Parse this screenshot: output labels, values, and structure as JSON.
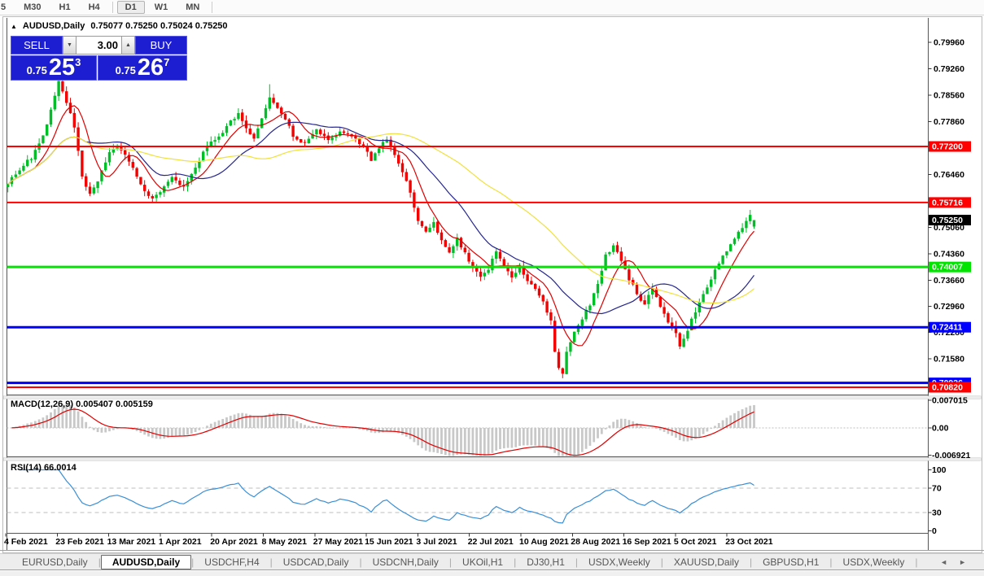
{
  "toolbar": {
    "timeframes": [
      "5",
      "M30",
      "H1",
      "H4",
      "D1",
      "W1",
      "MN"
    ],
    "active": "D1"
  },
  "chart": {
    "collapse_icon": "▲",
    "title": "AUDUSD,Daily",
    "ohlc": "0.75077 0.75250 0.75024 0.75250"
  },
  "trade": {
    "sell_label": "SELL",
    "buy_label": "BUY",
    "volume": "3.00",
    "spin_down_icon": "▼",
    "spin_up_icon": "▲",
    "sell": {
      "prefix": "0.75",
      "big": "25",
      "sup": "3"
    },
    "buy": {
      "prefix": "0.75",
      "big": "26",
      "sup": "7"
    }
  },
  "indicators": {
    "macd": {
      "title": "MACD(12,26,9) 0.005407 0.005159"
    },
    "rsi": {
      "title": "RSI(14) 66.0014"
    }
  },
  "tabs": {
    "items": [
      "EURUSD,Daily",
      "AUDUSD,Daily",
      "USDCHF,H4",
      "USDCAD,Daily",
      "USDCNH,Daily",
      "UKOil,H1",
      "DJ30,H1",
      "USDX,Weekly",
      "XAUUSD,Daily",
      "GBPUSD,H1",
      "USDX,Weekly"
    ],
    "active_index": 1,
    "scroll_left_icon": "◄",
    "scroll_right_icon": "►"
  },
  "chart_data": {
    "type": "candlestick",
    "symbol": "AUDUSD",
    "timeframe": "Daily",
    "last_bar": {
      "open": 0.75077,
      "high": 0.7525,
      "low": 0.75024,
      "close": 0.7525
    },
    "n_bars": 192,
    "candle_up_color": "#00BE28",
    "candle_down_color": "#F30000",
    "close_path_anchors": [
      [
        0,
        0.7625
      ],
      [
        3,
        0.766
      ],
      [
        6,
        0.769
      ],
      [
        9,
        0.7745
      ],
      [
        12,
        0.785
      ],
      [
        13,
        0.7895
      ],
      [
        15,
        0.784
      ],
      [
        17,
        0.777
      ],
      [
        19,
        0.764
      ],
      [
        21,
        0.759
      ],
      [
        23,
        0.763
      ],
      [
        26,
        0.77
      ],
      [
        28,
        0.772
      ],
      [
        31,
        0.768
      ],
      [
        34,
        0.762
      ],
      [
        37,
        0.758
      ],
      [
        39,
        0.76
      ],
      [
        42,
        0.7635
      ],
      [
        45,
        0.761
      ],
      [
        48,
        0.7665
      ],
      [
        51,
        0.772
      ],
      [
        54,
        0.7745
      ],
      [
        57,
        0.7785
      ],
      [
        59,
        0.7805
      ],
      [
        61,
        0.777
      ],
      [
        63,
        0.7745
      ],
      [
        65,
        0.7795
      ],
      [
        67,
        0.785
      ],
      [
        69,
        0.782
      ],
      [
        71,
        0.779
      ],
      [
        73,
        0.775
      ],
      [
        76,
        0.7725
      ],
      [
        79,
        0.7765
      ],
      [
        82,
        0.7735
      ],
      [
        85,
        0.7758
      ],
      [
        88,
        0.7745
      ],
      [
        91,
        0.772
      ],
      [
        93,
        0.7685
      ],
      [
        95,
        0.7715
      ],
      [
        97,
        0.774
      ],
      [
        99,
        0.7695
      ],
      [
        101,
        0.765
      ],
      [
        103,
        0.76
      ],
      [
        105,
        0.7525
      ],
      [
        107,
        0.749
      ],
      [
        109,
        0.7515
      ],
      [
        111,
        0.747
      ],
      [
        113,
        0.744
      ],
      [
        115,
        0.7475
      ],
      [
        117,
        0.744
      ],
      [
        119,
        0.74
      ],
      [
        121,
        0.737
      ],
      [
        123,
        0.7395
      ],
      [
        125,
        0.7445
      ],
      [
        127,
        0.7405
      ],
      [
        129,
        0.737
      ],
      [
        131,
        0.74
      ],
      [
        133,
        0.7365
      ],
      [
        135,
        0.734
      ],
      [
        137,
        0.7305
      ],
      [
        139,
        0.726
      ],
      [
        140,
        0.718
      ],
      [
        141,
        0.713
      ],
      [
        142,
        0.7115
      ],
      [
        143,
        0.7175
      ],
      [
        145,
        0.7225
      ],
      [
        147,
        0.7265
      ],
      [
        149,
        0.73
      ],
      [
        151,
        0.736
      ],
      [
        153,
        0.743
      ],
      [
        155,
        0.7455
      ],
      [
        157,
        0.742
      ],
      [
        159,
        0.737
      ],
      [
        161,
        0.733
      ],
      [
        163,
        0.73
      ],
      [
        165,
        0.7345
      ],
      [
        167,
        0.73
      ],
      [
        169,
        0.7255
      ],
      [
        171,
        0.723
      ],
      [
        172,
        0.7195
      ],
      [
        174,
        0.7235
      ],
      [
        176,
        0.7285
      ],
      [
        178,
        0.733
      ],
      [
        180,
        0.737
      ],
      [
        182,
        0.741
      ],
      [
        184,
        0.7445
      ],
      [
        186,
        0.748
      ],
      [
        188,
        0.7505
      ],
      [
        190,
        0.7535
      ],
      [
        191,
        0.7525
      ]
    ],
    "forced_points": [
      [
        13,
        "high",
        0.79
      ],
      [
        67,
        "high",
        0.7885
      ],
      [
        142,
        "low",
        0.7106
      ],
      [
        190,
        "high",
        0.7552
      ]
    ],
    "moving_averages": [
      {
        "period": 8,
        "color": "#E00000"
      },
      {
        "period": 21,
        "color": "#26268E"
      },
      {
        "period": 50,
        "color": "#F0E13C"
      }
    ],
    "price_axis_ticks": [
      "0.79960",
      "0.79260",
      "0.78560",
      "0.77860",
      "0.76460",
      "0.75060",
      "0.74360",
      "0.73660",
      "0.72960",
      "0.72280",
      "0.71580"
    ],
    "horizontal_levels": [
      {
        "price": 0.772,
        "label": "0.77200",
        "color": "#FF0000",
        "thickness": 2
      },
      {
        "price": 0.75716,
        "label": "0.75716",
        "color": "#FF0000",
        "thickness": 2
      },
      {
        "price": 0.74007,
        "label": "0.74007",
        "color": "#00E400",
        "thickness": 3
      },
      {
        "price": 0.72411,
        "label": "0.72411",
        "color": "#0000FF",
        "thickness": 3
      },
      {
        "price": 0.70936,
        "label": "0.70936",
        "color": "#0000FF",
        "thickness": 3
      },
      {
        "price": 0.7082,
        "label": "0.70820",
        "color": "#FF0000",
        "thickness": 2
      }
    ],
    "current_price": {
      "value": 0.7525,
      "label": "0.75250",
      "bg": "#000000",
      "fg": "#FFFFFF"
    },
    "x_dates": [
      "4 Feb 2021",
      "23 Feb 2021",
      "13 Mar 2021",
      "1 Apr 2021",
      "20 Apr 2021",
      "8 May 2021",
      "27 May 2021",
      "15 Jun 2021",
      "3 Jul 2021",
      "22 Jul 2021",
      "10 Aug 2021",
      "28 Aug 2021",
      "16 Sep 2021",
      "5 Oct 2021",
      "23 Oct 2021"
    ],
    "macd": {
      "fast": 12,
      "slow": 26,
      "signal_period": 9,
      "values_display": [
        "0.005407",
        "0.005159"
      ],
      "axis_ticks": [
        "0.007015",
        "0.00",
        "-0.006921"
      ],
      "hist_color": "#C8C8C8",
      "signal_color": "#E00000"
    },
    "rsi": {
      "period": 14,
      "value_display": "66.0014",
      "axis_ticks": [
        "100",
        "70",
        "30",
        "0"
      ],
      "dashed_levels": [
        70,
        30
      ],
      "line_color": "#3A8FD6"
    },
    "grid_color": "#BEBEBE"
  }
}
